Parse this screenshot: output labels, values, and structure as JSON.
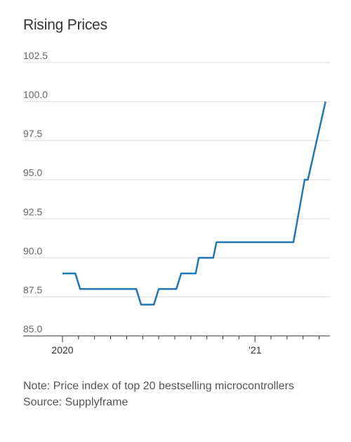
{
  "chart_data": {
    "type": "line",
    "title": "Rising Prices",
    "ylim": [
      85.0,
      102.5
    ],
    "y_ticks": [
      "85.0",
      "87.5",
      "90.0",
      "92.5",
      "95.0",
      "97.5",
      "100.0",
      "102.5"
    ],
    "x_tick_labels": [
      {
        "label": "2020",
        "month": 0
      },
      {
        "label": "’21",
        "month": 12
      }
    ],
    "x_minor_ticks_months": [
      1,
      2,
      3,
      4,
      5,
      6,
      7,
      8,
      9,
      10,
      11,
      13,
      14,
      15,
      16
    ],
    "x_range_months": [
      0,
      16.5
    ],
    "grid": true,
    "series": [
      {
        "color": "#1f77b4",
        "x_months": [
          0,
          0.8,
          1.1,
          4.6,
          4.9,
          5.7,
          6.0,
          7.1,
          7.4,
          8.3,
          8.5,
          9.4,
          9.6,
          10.9,
          11.1,
          14.4,
          15.1,
          15.3,
          16.4
        ],
        "values": [
          89,
          89,
          88,
          88,
          87,
          87,
          88,
          88,
          89,
          89,
          90,
          90,
          91,
          91,
          91,
          91,
          95,
          95,
          100
        ]
      }
    ]
  },
  "notes": {
    "note": "Note: Price index of top 20 bestselling microcontrollers",
    "source": "Source: Supplyframe"
  }
}
